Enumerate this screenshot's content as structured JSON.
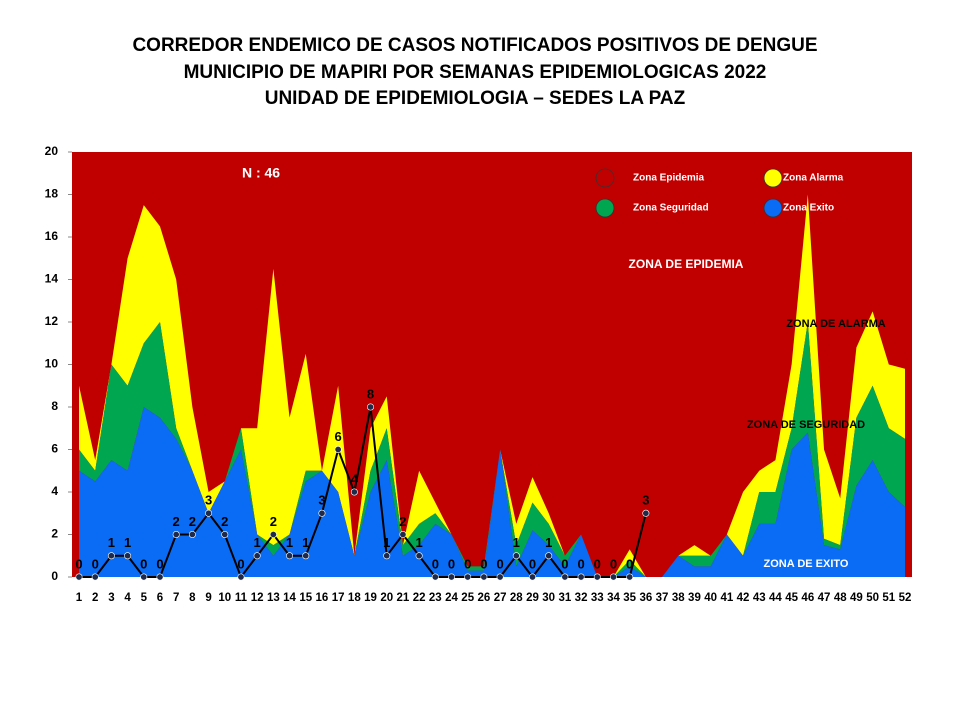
{
  "chart_data": {
    "type": "area",
    "title": [
      "CORREDOR ENDEMICO DE CASOS NOTIFICADOS POSITIVOS DE DENGUE",
      "MUNICIPIO DE MAPIRI POR SEMANAS EPIDEMIOLOGICAS 2022",
      "UNIDAD DE EPIDEMIOLOGIA – SEDES LA PAZ"
    ],
    "categories": [
      "1",
      "2",
      "3",
      "4",
      "5",
      "6",
      "7",
      "8",
      "9",
      "10",
      "11",
      "12",
      "13",
      "14",
      "15",
      "16",
      "17",
      "18",
      "19",
      "20",
      "21",
      "22",
      "23",
      "24",
      "25",
      "26",
      "27",
      "28",
      "29",
      "30",
      "31",
      "32",
      "33",
      "34",
      "35",
      "36",
      "37",
      "38",
      "39",
      "40",
      "41",
      "42",
      "43",
      "44",
      "45",
      "46",
      "47",
      "48",
      "49",
      "50",
      "51",
      "52"
    ],
    "ylim": [
      0,
      20
    ],
    "yticks": [
      0,
      2,
      4,
      6,
      8,
      10,
      12,
      14,
      16,
      18,
      20
    ],
    "stacked": true,
    "background_series": 3,
    "series": [
      {
        "name": "Zona Exito",
        "color": "#0a6cf5",
        "values": [
          5,
          4.5,
          5.5,
          5,
          8,
          7.5,
          6.5,
          5,
          3,
          4.5,
          6,
          2,
          1,
          2,
          4.5,
          5,
          4,
          1,
          4,
          5.5,
          1,
          1.5,
          2.5,
          2,
          0.3,
          0.3,
          6,
          0.5,
          2.2,
          1.5,
          0.5,
          2,
          0,
          0,
          0.5,
          0,
          0,
          1,
          0.5,
          0.5,
          2,
          1,
          2.5,
          2.5,
          6,
          6.8,
          1.5,
          1.3,
          4.3,
          5.5,
          4,
          3.3
        ]
      },
      {
        "name": "Zona Seguridad",
        "color": "#00a650",
        "values": [
          1,
          0.5,
          4.5,
          4,
          3,
          4.5,
          0.5,
          0,
          0,
          0,
          1,
          0,
          0.5,
          0,
          0.5,
          0,
          0,
          0,
          1,
          1.5,
          0.5,
          1,
          0.5,
          0,
          0.2,
          0.2,
          0,
          1,
          1.3,
          1,
          0.5,
          0,
          0,
          0,
          0.3,
          0,
          0,
          0,
          0.5,
          0.5,
          0,
          0,
          1.5,
          1.5,
          1,
          5.2,
          0.3,
          0.2,
          3.2,
          3.5,
          3,
          3.2
        ]
      },
      {
        "name": "Zona Alarma",
        "color": "#ffff00",
        "values": [
          3,
          0.5,
          0,
          6,
          6.5,
          4.5,
          7,
          3,
          1,
          0,
          0,
          5,
          13,
          5.5,
          5.5,
          0,
          5,
          0,
          2,
          1.5,
          0,
          2.5,
          0.5,
          0,
          0,
          0,
          0,
          1,
          1.2,
          0.5,
          0,
          0,
          0,
          0,
          0.5,
          0,
          0,
          0,
          0.5,
          0,
          0,
          3,
          1,
          1.5,
          3,
          6,
          4.2,
          2.2,
          3.3,
          3.5,
          3,
          3.3
        ]
      },
      {
        "name": "Zona Epidemia",
        "color": "#c00000"
      }
    ],
    "cases": {
      "color": "#000000",
      "marker_color": "#1f2a4a",
      "values": [
        0,
        0,
        1,
        1,
        0,
        0,
        2,
        2,
        3,
        2,
        0,
        1,
        2,
        1,
        1,
        3,
        6,
        4,
        8,
        1,
        2,
        1,
        0,
        0,
        0,
        0,
        0,
        1,
        0,
        1,
        0,
        0,
        0,
        0,
        0,
        3,
        null,
        null,
        null,
        null,
        null,
        null,
        null,
        null,
        null,
        null,
        null,
        null,
        null,
        null,
        null,
        null
      ]
    },
    "annotations": [
      "N : 46",
      "ZONA DE EPIDEMIA",
      "ZONA DE ALARMA",
      "ZONA DE  SEGURIDAD",
      "ZONA DE  EXITO"
    ]
  }
}
